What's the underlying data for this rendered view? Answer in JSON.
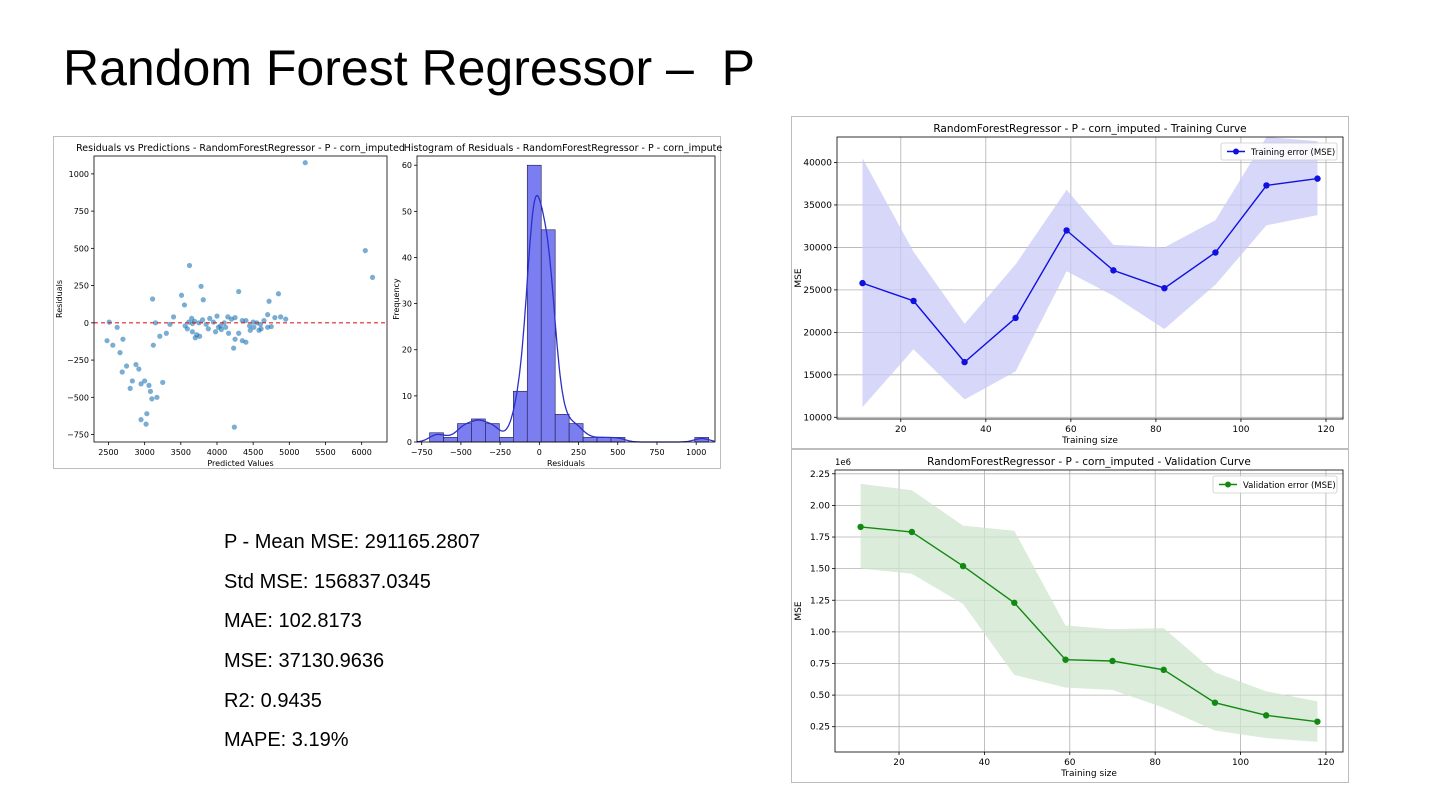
{
  "slide": {
    "title": "Random Forest Regressor –  P"
  },
  "metrics": [
    "P - Mean MSE: 291165.2807",
    "Std MSE: 156837.0345",
    "MAE: 102.8173",
    "MSE: 37130.9636",
    "R2: 0.9435",
    "MAPE: 3.19%"
  ],
  "chart_data": [
    {
      "type": "scatter",
      "title": "Residuals vs Predictions - RandomForestRegressor - P - corn_imputed",
      "xlabel": "Predicted Values",
      "ylabel": "Residuals",
      "xlim": [
        2300,
        6350
      ],
      "ylim": [
        -800,
        1120
      ],
      "xticks": [
        2500,
        3000,
        3500,
        4000,
        4500,
        5000,
        5500,
        6000
      ],
      "yticks": [
        -750,
        -500,
        -250,
        0,
        250,
        500,
        750,
        1000
      ],
      "grid": false,
      "color": "#1f77b4",
      "reference_line": {
        "y": 0,
        "color": "#d62728",
        "style": "dashed"
      },
      "points": [
        [
          5220,
          1075
        ],
        [
          6050,
          485
        ],
        [
          6150,
          305
        ],
        [
          3620,
          385
        ],
        [
          3780,
          245
        ],
        [
          4300,
          210
        ],
        [
          4850,
          195
        ],
        [
          3510,
          185
        ],
        [
          3110,
          160
        ],
        [
          4720,
          145
        ],
        [
          3810,
          155
        ],
        [
          3550,
          120
        ],
        [
          4000,
          45
        ],
        [
          3900,
          30
        ],
        [
          3650,
          30
        ],
        [
          4150,
          40
        ],
        [
          4700,
          55
        ],
        [
          4800,
          35
        ],
        [
          4950,
          25
        ],
        [
          4400,
          15
        ],
        [
          3610,
          5
        ],
        [
          3660,
          -5
        ],
        [
          3690,
          10
        ],
        [
          3750,
          0
        ],
        [
          3800,
          20
        ],
        [
          3850,
          -10
        ],
        [
          3950,
          5
        ],
        [
          4050,
          -20
        ],
        [
          4100,
          0
        ],
        [
          4200,
          25
        ],
        [
          4250,
          35
        ],
        [
          4350,
          15
        ],
        [
          4450,
          -20
        ],
        [
          4500,
          5
        ],
        [
          4550,
          0
        ],
        [
          4600,
          -10
        ],
        [
          4650,
          15
        ],
        [
          4750,
          -25
        ],
        [
          4700,
          -30
        ],
        [
          4610,
          -40
        ],
        [
          3560,
          -20
        ],
        [
          3590,
          -40
        ],
        [
          3660,
          -60
        ],
        [
          3720,
          -80
        ],
        [
          3760,
          -90
        ],
        [
          3880,
          -40
        ],
        [
          3980,
          -60
        ],
        [
          4120,
          -30
        ],
        [
          4250,
          -110
        ],
        [
          4300,
          -70
        ],
        [
          4350,
          -120
        ],
        [
          4400,
          -130
        ],
        [
          4230,
          -170
        ],
        [
          4160,
          -70
        ],
        [
          4510,
          -30
        ],
        [
          4580,
          -50
        ],
        [
          2510,
          5
        ],
        [
          2620,
          -30
        ],
        [
          2700,
          -110
        ],
        [
          2560,
          -150
        ],
        [
          2480,
          -120
        ],
        [
          2660,
          -200
        ],
        [
          2750,
          -290
        ],
        [
          2880,
          -280
        ],
        [
          2920,
          -310
        ],
        [
          2830,
          -390
        ],
        [
          2950,
          -410
        ],
        [
          2690,
          -330
        ],
        [
          2800,
          -440
        ],
        [
          3000,
          -390
        ],
        [
          3060,
          -420
        ],
        [
          3100,
          -510
        ],
        [
          3170,
          -500
        ],
        [
          3250,
          -400
        ],
        [
          3080,
          -460
        ],
        [
          3030,
          -610
        ],
        [
          2950,
          -650
        ],
        [
          3020,
          -680
        ],
        [
          4240,
          -700
        ],
        [
          3210,
          -90
        ],
        [
          3300,
          -70
        ],
        [
          3120,
          -150
        ],
        [
          3350,
          -10
        ],
        [
          3400,
          40
        ],
        [
          3150,
          0
        ],
        [
          4880,
          40
        ],
        [
          4060,
          -45
        ],
        [
          4460,
          -50
        ],
        [
          3700,
          -100
        ],
        [
          4020,
          -30
        ]
      ]
    },
    {
      "type": "bar",
      "title": "Histogram of Residuals - RandomForestRegressor - P - corn_imputed",
      "xlabel": "Residuals",
      "ylabel": "Frequency",
      "xlim": [
        -780,
        1120
      ],
      "ylim": [
        0,
        62
      ],
      "xticks": [
        -750,
        -500,
        -250,
        0,
        250,
        500,
        750,
        1000
      ],
      "yticks": [
        0,
        10,
        20,
        30,
        40,
        50,
        60
      ],
      "grid": false,
      "bin_width": 89,
      "bins_start": [
        -700,
        -611,
        -522,
        -433,
        -344,
        -255,
        -166,
        -77,
        12,
        101,
        190,
        279,
        368,
        457,
        546,
        635,
        724,
        813,
        902,
        991
      ],
      "values": [
        2,
        1,
        4,
        5,
        4,
        1,
        11,
        60,
        46,
        6,
        4,
        1,
        1,
        1,
        0,
        0,
        0,
        0,
        0,
        1
      ],
      "bar_color": "#7b7ef0",
      "kde": true,
      "kde_color": "#2d2fc9"
    },
    {
      "type": "line",
      "title": "RandomForestRegressor - P - corn_imputed - Training Curve",
      "xlabel": "Training size",
      "ylabel": "MSE",
      "xlim": [
        5,
        124
      ],
      "ylim": [
        9800,
        43000
      ],
      "xticks": [
        20,
        40,
        60,
        80,
        100,
        120
      ],
      "yticks": [
        10000,
        15000,
        20000,
        25000,
        30000,
        35000,
        40000
      ],
      "grid": true,
      "legend": "top-right",
      "x": [
        11,
        23,
        35,
        47,
        59,
        70,
        82,
        94,
        106,
        118
      ],
      "series": [
        {
          "name": "Training error (MSE)",
          "color": "#1010e0",
          "band_color": "#c9c9f7",
          "values": [
            25800,
            23700,
            16500,
            21700,
            32000,
            27300,
            25200,
            29400,
            37300,
            38100
          ],
          "upper": [
            40500,
            29500,
            21000,
            28000,
            36800,
            30300,
            30000,
            33200,
            43000,
            42500
          ],
          "lower": [
            11200,
            18000,
            12100,
            15400,
            27200,
            24300,
            20400,
            25600,
            32600,
            33800
          ]
        }
      ]
    },
    {
      "type": "line",
      "title": "RandomForestRegressor - P - corn_imputed - Validation Curve",
      "xlabel": "Training size",
      "ylabel": "MSE",
      "axis_offset_label": "1e6",
      "xlim": [
        5,
        124
      ],
      "ylim": [
        0.05,
        2.28
      ],
      "xticks": [
        20,
        40,
        60,
        80,
        100,
        120
      ],
      "yticks": [
        0.25,
        0.5,
        0.75,
        1.0,
        1.25,
        1.5,
        1.75,
        2.0,
        2.25
      ],
      "ytick_labels": [
        "0.25",
        "0.50",
        "0.75",
        "1.00",
        "1.25",
        "1.50",
        "1.75",
        "2.00",
        "2.25"
      ],
      "grid": true,
      "legend": "top-right",
      "x": [
        11,
        23,
        35,
        47,
        59,
        70,
        82,
        94,
        106,
        118
      ],
      "series": [
        {
          "name": "Validation error (MSE)",
          "color": "#128a12",
          "band_color": "#cfe6cf",
          "values": [
            1.83,
            1.79,
            1.52,
            1.23,
            0.78,
            0.77,
            0.7,
            0.44,
            0.34,
            0.29
          ],
          "upper": [
            2.17,
            2.12,
            1.84,
            1.8,
            1.05,
            1.02,
            1.03,
            0.68,
            0.53,
            0.45
          ],
          "lower": [
            1.5,
            1.46,
            1.22,
            0.66,
            0.56,
            0.54,
            0.4,
            0.22,
            0.16,
            0.13
          ]
        }
      ]
    }
  ]
}
